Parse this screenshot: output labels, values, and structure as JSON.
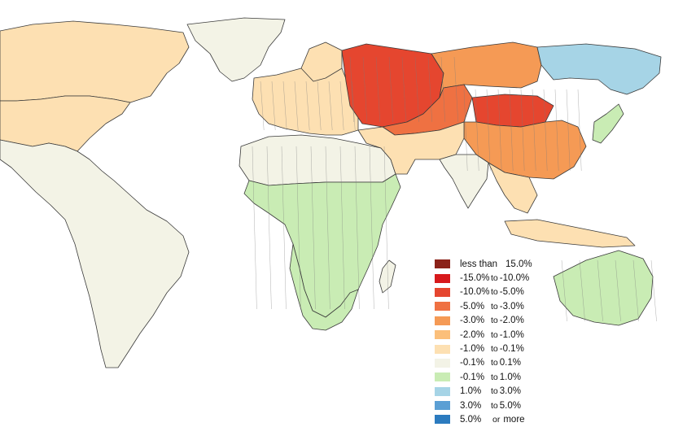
{
  "legend": {
    "items": [
      {
        "lo": "less than",
        "conn": "",
        "hi": "15.0%",
        "color": "#8b2219"
      },
      {
        "lo": "-15.0%",
        "conn": "to",
        "hi": "-10.0%",
        "color": "#d7191c"
      },
      {
        "lo": "-10.0%",
        "conn": "to",
        "hi": "-5.0%",
        "color": "#e5462f"
      },
      {
        "lo": "-5.0%",
        "conn": "to",
        "hi": "-3.0%",
        "color": "#ef7142"
      },
      {
        "lo": "-3.0%",
        "conn": "to",
        "hi": "-2.0%",
        "color": "#f59a55"
      },
      {
        "lo": "-2.0%",
        "conn": "to",
        "hi": "-1.0%",
        "color": "#fbbf7a"
      },
      {
        "lo": "-1.0%",
        "conn": "to",
        "hi": "-0.1%",
        "color": "#fde0b2"
      },
      {
        "lo": "-0.1%",
        "conn": "to",
        "hi": "0.1%",
        "color": "#f3f3e6"
      },
      {
        "lo": "-0.1%",
        "conn": "to",
        "hi": "1.0%",
        "color": "#c9ecb4"
      },
      {
        "lo": "1.0%",
        "conn": "to",
        "hi": "3.0%",
        "color": "#a6d4e6"
      },
      {
        "lo": "3.0%",
        "conn": "to",
        "hi": "5.0%",
        "color": "#5b9fd4"
      },
      {
        "lo": "5.0%",
        "conn": "or",
        "hi": "more",
        "color": "#2c7bbf"
      }
    ]
  },
  "map": {
    "region_classes": {
      "canada_north": 6,
      "usa_canada_south": 6,
      "greenland": 7,
      "americas": 7,
      "north_africa": 7,
      "africa_central": 8,
      "africa_south": 8,
      "madagascar": 7,
      "europe": 6,
      "scandinavia": 6,
      "russia_west": 2,
      "russia_central": 4,
      "russia_east": 9,
      "kazakhstan": 3,
      "mongolia": 2,
      "china": 4,
      "middle_east": 6,
      "india": 7,
      "southeast_asia": 6,
      "indonesia": 6,
      "australia": 8,
      "japan": 8
    }
  }
}
